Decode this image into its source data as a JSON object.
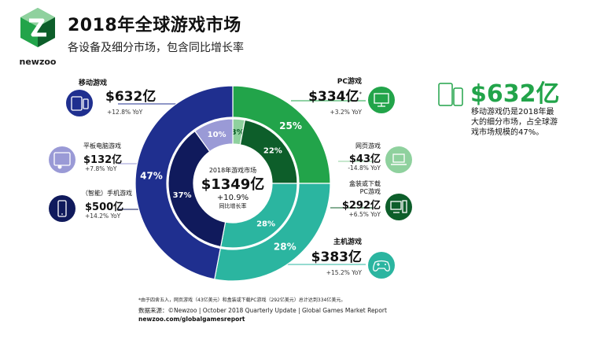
{
  "brand": {
    "logo_text": "newzoo"
  },
  "header": {
    "title": "2018年全球游戏市场",
    "subtitle": "各设备及细分市场，包含同比增长率"
  },
  "center": {
    "label": "2018年游戏市场",
    "value": "$1349亿",
    "growth": "+10.9%",
    "growth_label": "同比增长率"
  },
  "segments": {
    "mobile": {
      "name": "移动游戏",
      "value": "$632亿",
      "yoy": "+12.8% YoY"
    },
    "tablet": {
      "name": "平板电脑游戏",
      "value": "$132亿",
      "yoy": "+7.8% YoY"
    },
    "smartphone": {
      "name": "（智能）手机游戏",
      "value": "$500亿",
      "yoy": "+14.2% YoY"
    },
    "pc": {
      "name": "PC游戏",
      "value": "$334亿",
      "asterisk": "*",
      "yoy": "+3.2% YoY"
    },
    "browser": {
      "name": "网页游戏",
      "value": "$43亿",
      "yoy": "-14.8% YoY"
    },
    "boxed": {
      "name_line1": "盒装或下载",
      "name_line2": "PC游戏",
      "value": "$292亿",
      "yoy": "+6.5% YoY"
    },
    "console": {
      "name": "主机游戏",
      "value": "$383亿",
      "yoy": "+15.2% YoY"
    }
  },
  "highlight": {
    "value": "$632亿",
    "desc_line1": "移动游戏仍是2018年最",
    "desc_line2": "大的细分市场，占全球游",
    "desc_line3": "戏市场规模的47%。"
  },
  "footer": {
    "footnote": "*由于四舍五入，网页游戏（43亿美元）和盒装或下载PC游戏（292亿美元）总计达到334亿美元。",
    "source": "数据来源：©Newzoo | October 2018 Quarterly Update | Global Games Market Report",
    "url": "newzoo.com/globalgamesreport"
  },
  "colors": {
    "mobile": "#1f2f8f",
    "pc": "#22a44a",
    "console": "#2bb5a0",
    "tablet": "#9a9ad6",
    "smartphone": "#101a5c",
    "browser": "#8fd19e",
    "boxed": "#0d5e2a"
  },
  "chart_data": [
    {
      "type": "pie",
      "ring": "outer",
      "categories": [
        "PC游戏",
        "主机游戏",
        "移动游戏"
      ],
      "values": [
        25,
        28,
        47
      ],
      "labels": [
        "25%",
        "28%",
        "47%"
      ]
    },
    {
      "type": "pie",
      "ring": "inner",
      "categories": [
        "网页游戏",
        "盒装或下载PC游戏",
        "主机游戏",
        "（智能）手机游戏",
        "平板电脑游戏"
      ],
      "values": [
        3,
        22,
        28,
        37,
        10
      ],
      "labels": [
        "3%",
        "22%",
        "28%",
        "37%",
        "10%"
      ]
    }
  ]
}
